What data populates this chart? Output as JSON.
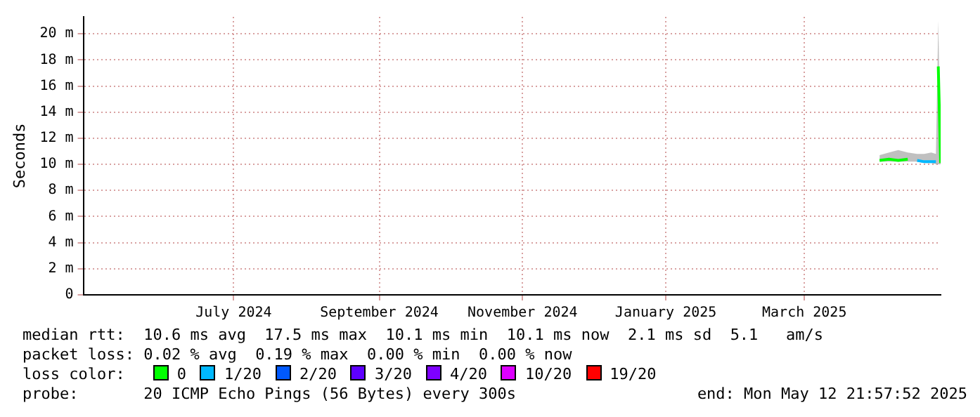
{
  "chart_data": {
    "type": "line",
    "ylabel": "Seconds",
    "legend_title": "loss color:",
    "legend": "bottom",
    "grid": true,
    "marker": "none",
    "line_style": "solid",
    "x": [
      "2025-04-16",
      "2025-04-20",
      "2025-04-24",
      "2025-04-28",
      "2025-05-02",
      "2025-05-05",
      "2025-05-08",
      "2025-05-10",
      "2025-05-11",
      "2025-05-12"
    ],
    "xlim": [
      "2024-05-12",
      "2025-05-12"
    ],
    "xticks": [
      {
        "value": "2024-07-15",
        "label": "July 2024"
      },
      {
        "value": "2024-09-15",
        "label": "September 2024"
      },
      {
        "value": "2024-11-15",
        "label": "November 2024"
      },
      {
        "value": "2025-01-15",
        "label": "January 2025"
      },
      {
        "value": "2025-03-15",
        "label": "March 2025"
      }
    ],
    "ylim": [
      0,
      21.3
    ],
    "yticks": [
      0,
      {
        "value": 2,
        "label": "2 m"
      },
      {
        "value": 4,
        "label": "4 m"
      },
      {
        "value": 6,
        "label": "6 m"
      },
      {
        "value": 8,
        "label": "8 m"
      },
      {
        "value": 10,
        "label": "10 m"
      },
      {
        "value": 12,
        "label": "12 m"
      },
      {
        "value": 14,
        "label": "14 m"
      },
      {
        "value": 16,
        "label": "16 m"
      },
      {
        "value": 18,
        "label": "18 m"
      },
      {
        "value": 20,
        "label": "20 m"
      }
    ],
    "series": [
      {
        "name": "0",
        "color": "#00ff00",
        "values": [
          10.3,
          10.4,
          10.3,
          10.4,
          null,
          null,
          null,
          null,
          17.5,
          10.1
        ],
        "lower": [
          10.2,
          10.2,
          10.2,
          10.2,
          10.2,
          10.1,
          10.1,
          10,
          10,
          10
        ],
        "upper": [
          10.7,
          10.9,
          11.1,
          10.9,
          10.8,
          10.8,
          10.9,
          10.8,
          21,
          10.8
        ]
      },
      {
        "name": "1/20",
        "color": "#00b8ff",
        "values": [
          null,
          null,
          null,
          null,
          10.3,
          10.2,
          10.2,
          10.2,
          null,
          null
        ]
      },
      {
        "name": "2/20",
        "color": "#0059ff",
        "values": [
          null,
          null,
          null,
          null,
          null,
          null,
          null,
          null,
          null,
          null
        ]
      },
      {
        "name": "3/20",
        "color": "#5e00ff",
        "values": [
          null,
          null,
          null,
          null,
          null,
          null,
          null,
          null,
          null,
          null
        ]
      },
      {
        "name": "4/20",
        "color": "#7e00ff",
        "values": [
          null,
          null,
          null,
          null,
          null,
          null,
          null,
          null,
          null,
          null
        ]
      },
      {
        "name": "10/20",
        "color": "#dd00ff",
        "values": [
          null,
          null,
          null,
          null,
          null,
          null,
          null,
          null,
          null,
          null
        ]
      },
      {
        "name": "19/20",
        "color": "#ff0000",
        "values": [
          null,
          null,
          null,
          null,
          null,
          null,
          null,
          null,
          null,
          null
        ]
      }
    ],
    "annotations": [
      "median rtt:  10.6 ms avg  17.5 ms max  10.1 ms min  10.1 ms now  2.1 ms sd  5.1   am/s",
      "packet loss: 0.02 % avg  0.19 % max  0.00 % min  0.00 % now",
      "probe:       20 ICMP Echo Pings (56 Bytes) every 300s",
      "end: Mon May 12 21:57:52 2025"
    ]
  }
}
